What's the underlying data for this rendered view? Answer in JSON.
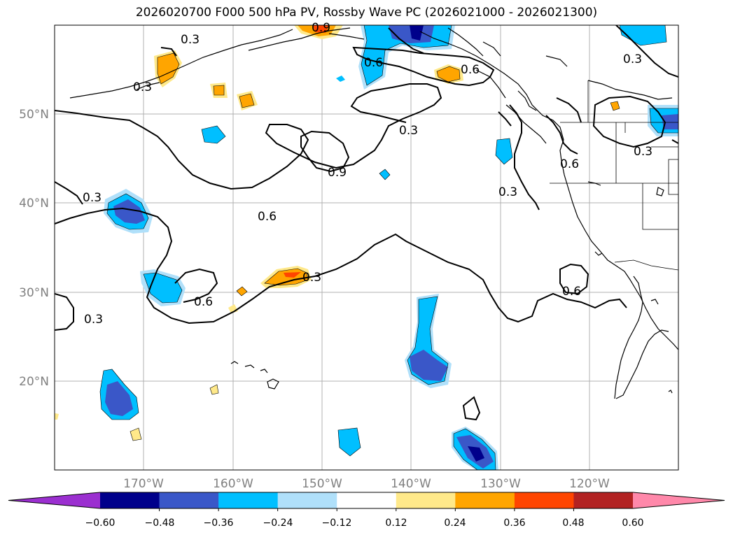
{
  "title": "2026020700 F000 500 hPa PV, Rossby Wave PC (2026021000 - 2026021300)",
  "lat_labels": [
    "50°N",
    "40°N",
    "30°N",
    "20°N"
  ],
  "lon_labels": [
    "170°W",
    "160°W",
    "150°W",
    "140°W",
    "130°W",
    "120°W"
  ],
  "contour_labels": [
    "0.3",
    "0.3",
    "0.3",
    "0.3",
    "0.3",
    "0.3",
    "0.3",
    "0.3",
    "0.3",
    "0.6",
    "0.6",
    "0.6",
    "0.6",
    "0.6",
    "0.6",
    "0.9"
  ],
  "colorbar": {
    "ticks": [
      "−0.60",
      "−0.48",
      "−0.36",
      "−0.24",
      "−0.12",
      "0.12",
      "0.24",
      "0.36",
      "0.48",
      "0.60"
    ],
    "colors": [
      "#9b2fd0",
      "#00008b",
      "#3a57c8",
      "#00bfff",
      "#b0e0fa",
      "#ffffff",
      "#ffe98a",
      "#ffa500",
      "#ff4500",
      "#b22222",
      "#ff88aa"
    ]
  },
  "chart_data": {
    "type": "map",
    "field": "500 hPa PV, Rossby Wave PC",
    "extent": {
      "lon": [
        -180,
        -110
      ],
      "lat": [
        10,
        60
      ]
    },
    "contour_levels": [
      0.3,
      0.6,
      0.9
    ],
    "shading_levels": [
      -0.6,
      -0.48,
      -0.36,
      -0.24,
      -0.12,
      0.12,
      0.24,
      0.36,
      0.48,
      0.6
    ],
    "grid": true
  }
}
